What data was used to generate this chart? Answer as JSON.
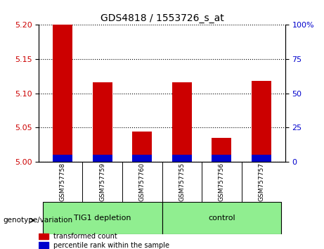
{
  "title": "GDS4818 / 1553726_s_at",
  "samples": [
    "GSM757758",
    "GSM757759",
    "GSM757760",
    "GSM757755",
    "GSM757756",
    "GSM757757"
  ],
  "transformed_counts": [
    5.2,
    5.116,
    5.044,
    5.116,
    5.035,
    5.118
  ],
  "percentile_ranks": [
    0.06,
    0.06,
    0.055,
    0.06,
    0.055,
    0.06
  ],
  "groups": [
    {
      "label": "TIG1 depletion",
      "samples": [
        0,
        1,
        2
      ],
      "color": "#90EE90"
    },
    {
      "label": "control",
      "samples": [
        3,
        4,
        5
      ],
      "color": "#90EE90"
    }
  ],
  "ylim_left": [
    5.0,
    5.2
  ],
  "ylim_right": [
    0,
    100
  ],
  "yticks_left": [
    5.0,
    5.05,
    5.1,
    5.15,
    5.2
  ],
  "yticks_right": [
    0,
    25,
    50,
    75,
    100
  ],
  "left_axis_color": "#cc0000",
  "right_axis_color": "#0000cc",
  "bar_color_red": "#cc0000",
  "bar_color_blue": "#0000cc",
  "background_plot": "#ffffff",
  "background_labels": "#d3d3d3",
  "grid_color": "#000000",
  "group_label": "genotype/variation",
  "legend_red": "transformed count",
  "legend_blue": "percentile rank within the sample",
  "bar_width": 0.5
}
